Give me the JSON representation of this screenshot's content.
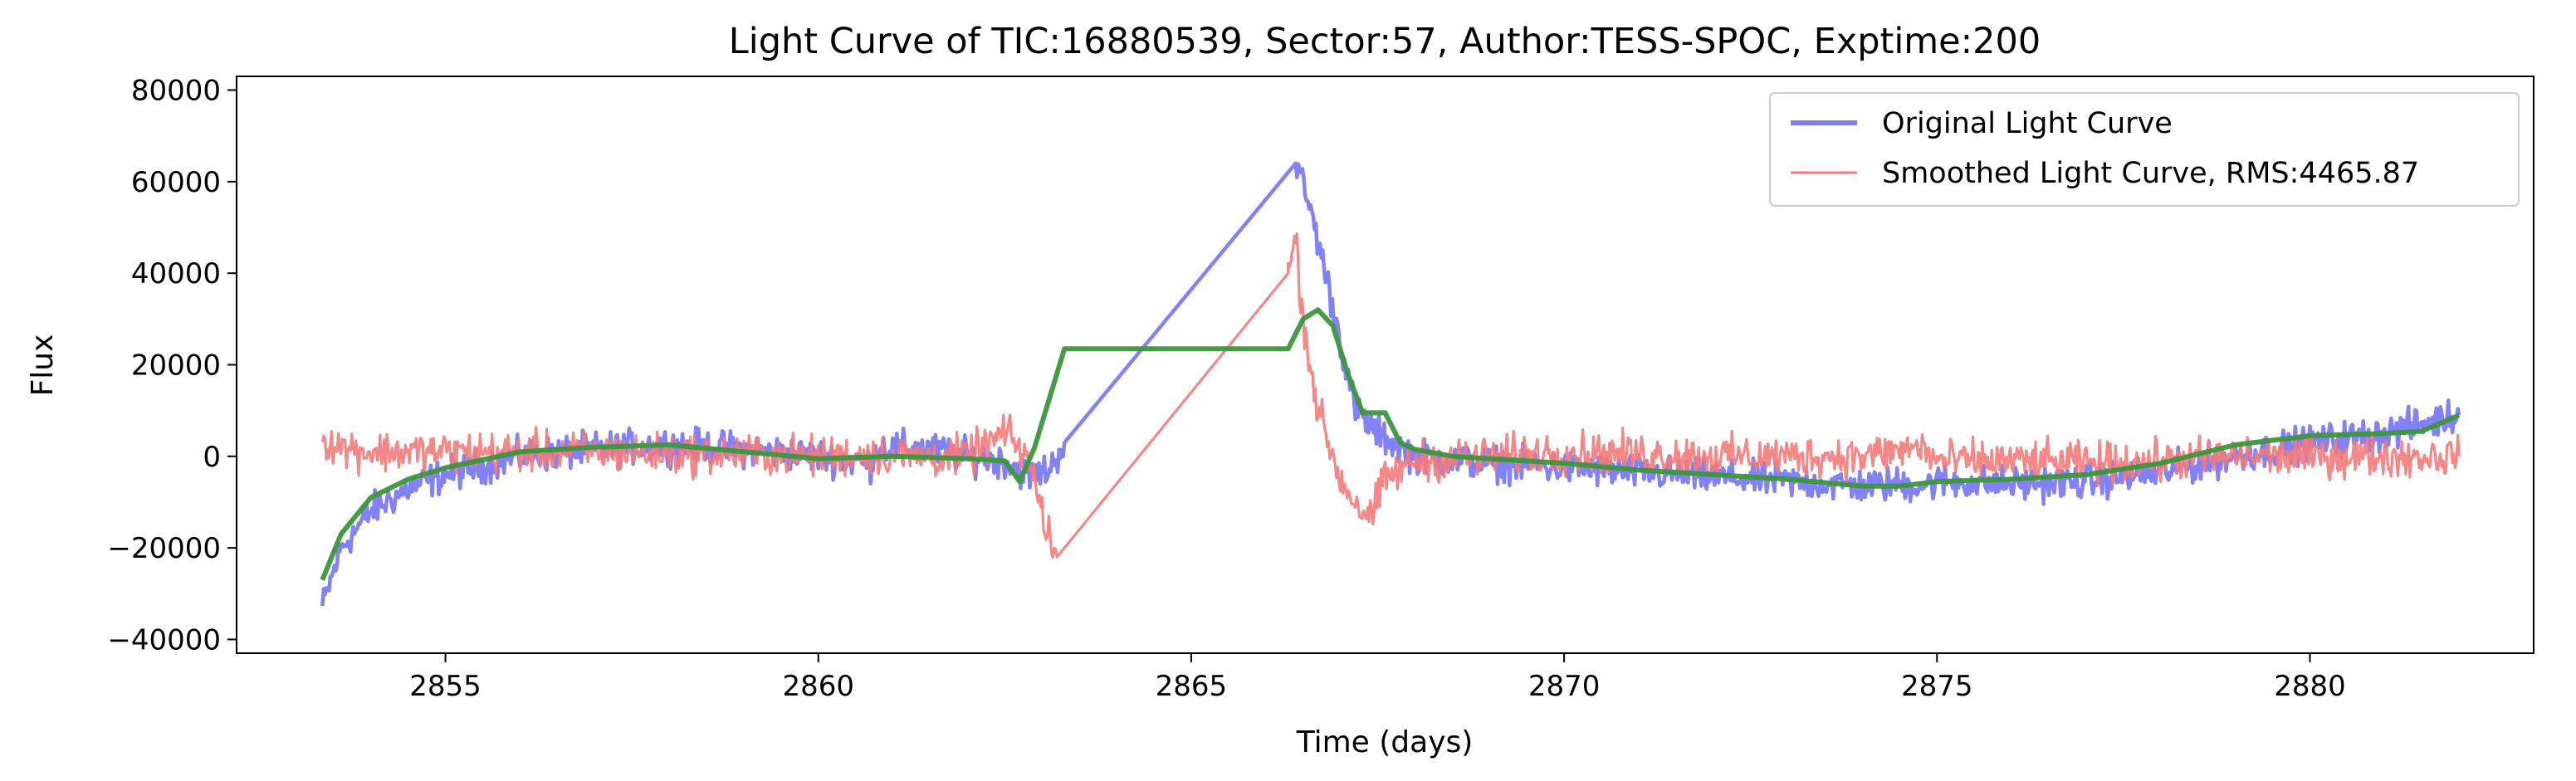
{
  "chart_data": {
    "type": "line",
    "title": "Light Curve of TIC:16880539, Sector:57, Author:TESS-SPOC, Exptime:200",
    "xlabel": "Time (days)",
    "ylabel": "Flux",
    "xlim": [
      2852.2,
      2883.0
    ],
    "ylim": [
      -43000,
      83000
    ],
    "xticks": [
      2855,
      2860,
      2865,
      2870,
      2875,
      2880
    ],
    "yticks": [
      -40000,
      -20000,
      0,
      20000,
      40000,
      60000,
      80000
    ],
    "grid": false,
    "legend_position": "top-right",
    "series": [
      {
        "name": "Original Light Curve",
        "color": "#7b7bf5",
        "style": "noisy",
        "noise": 3200,
        "x": [
          2853.35,
          2853.6,
          2854.0,
          2854.5,
          2855.0,
          2856.0,
          2857.0,
          2858.0,
          2859.0,
          2860.0,
          2860.7,
          2860.8,
          2861.5,
          2862.0,
          2862.5,
          2862.8,
          2863.1,
          2863.3,
          2866.4,
          2866.6,
          2866.8,
          2867.0,
          2867.2,
          2867.5,
          2868.0,
          2869.0,
          2870.0,
          2871.0,
          2872.0,
          2873.0,
          2874.0,
          2874.5,
          2874.8,
          2875.0,
          2876.0,
          2877.0,
          2878.0,
          2879.0,
          2880.0,
          2881.0,
          2882.0
        ],
        "y": [
          -33000,
          -20000,
          -12000,
          -7000,
          -4000,
          0,
          1500,
          2500,
          1500,
          0,
          -1500,
          2000,
          1500,
          0,
          -1000,
          -4000,
          -3000,
          3000,
          64000,
          54000,
          40000,
          25000,
          10000,
          5000,
          0,
          -1500,
          -2500,
          -3500,
          -4500,
          -5500,
          -6500,
          -6000,
          -6500,
          -5500,
          -6000,
          -5500,
          -3500,
          0,
          3000,
          5000,
          9000
        ]
      },
      {
        "name": "Smoothed Light Curve, RMS:4465.87",
        "color": "#f47a7a",
        "style": "noisy",
        "noise": 3800,
        "x": [
          2853.35,
          2853.6,
          2854.0,
          2855.0,
          2856.0,
          2857.0,
          2858.0,
          2859.0,
          2860.0,
          2860.7,
          2861.0,
          2862.0,
          2862.5,
          2862.8,
          2863.0,
          2863.2,
          2866.3,
          2866.4,
          2866.5,
          2866.7,
          2867.0,
          2867.2,
          2867.4,
          2867.6,
          2868.0,
          2869.0,
          2870.0,
          2871.0,
          2872.0,
          2873.0,
          2874.0,
          2874.8,
          2875.0,
          2876.0,
          2877.0,
          2878.0,
          2879.0,
          2880.0,
          2881.0,
          2882.0
        ],
        "y": [
          4000,
          2000,
          1000,
          1000,
          1000,
          1000,
          500,
          500,
          0,
          500,
          0,
          0,
          5000,
          0,
          -12000,
          -22000,
          40000,
          48000,
          30000,
          10000,
          -5000,
          -10000,
          -14000,
          -5000,
          -1000,
          0,
          1000,
          500,
          0,
          0,
          0,
          2000,
          -1000,
          -1000,
          -1500,
          -1000,
          0,
          0,
          0,
          0
        ]
      },
      {
        "name": "",
        "color": "#3c963c",
        "style": "smooth",
        "noise": 0,
        "x": [
          2853.35,
          2853.6,
          2854.0,
          2854.5,
          2855.0,
          2856.0,
          2857.0,
          2858.0,
          2859.0,
          2860.0,
          2861.0,
          2862.0,
          2862.5,
          2862.7,
          2862.9,
          2863.3,
          2866.3,
          2866.5,
          2866.7,
          2866.9,
          2867.1,
          2867.3,
          2867.6,
          2867.8,
          2868.0,
          2868.5,
          2869.0,
          2870.0,
          2871.0,
          2872.0,
          2873.0,
          2874.0,
          2874.5,
          2875.0,
          2876.0,
          2877.0,
          2878.0,
          2879.0,
          2880.0,
          2881.0,
          2881.5,
          2882.0
        ],
        "y": [
          -27000,
          -17000,
          -9000,
          -5000,
          -2500,
          1000,
          2000,
          2500,
          1000,
          -500,
          0,
          -500,
          -1000,
          -5500,
          2000,
          23500,
          23500,
          30000,
          32000,
          28500,
          18000,
          9500,
          9500,
          3000,
          1500,
          0,
          -500,
          -1500,
          -3000,
          -4000,
          -5000,
          -6500,
          -6500,
          -5500,
          -5000,
          -4000,
          -1500,
          2500,
          4500,
          5000,
          5500,
          9000
        ]
      }
    ]
  }
}
